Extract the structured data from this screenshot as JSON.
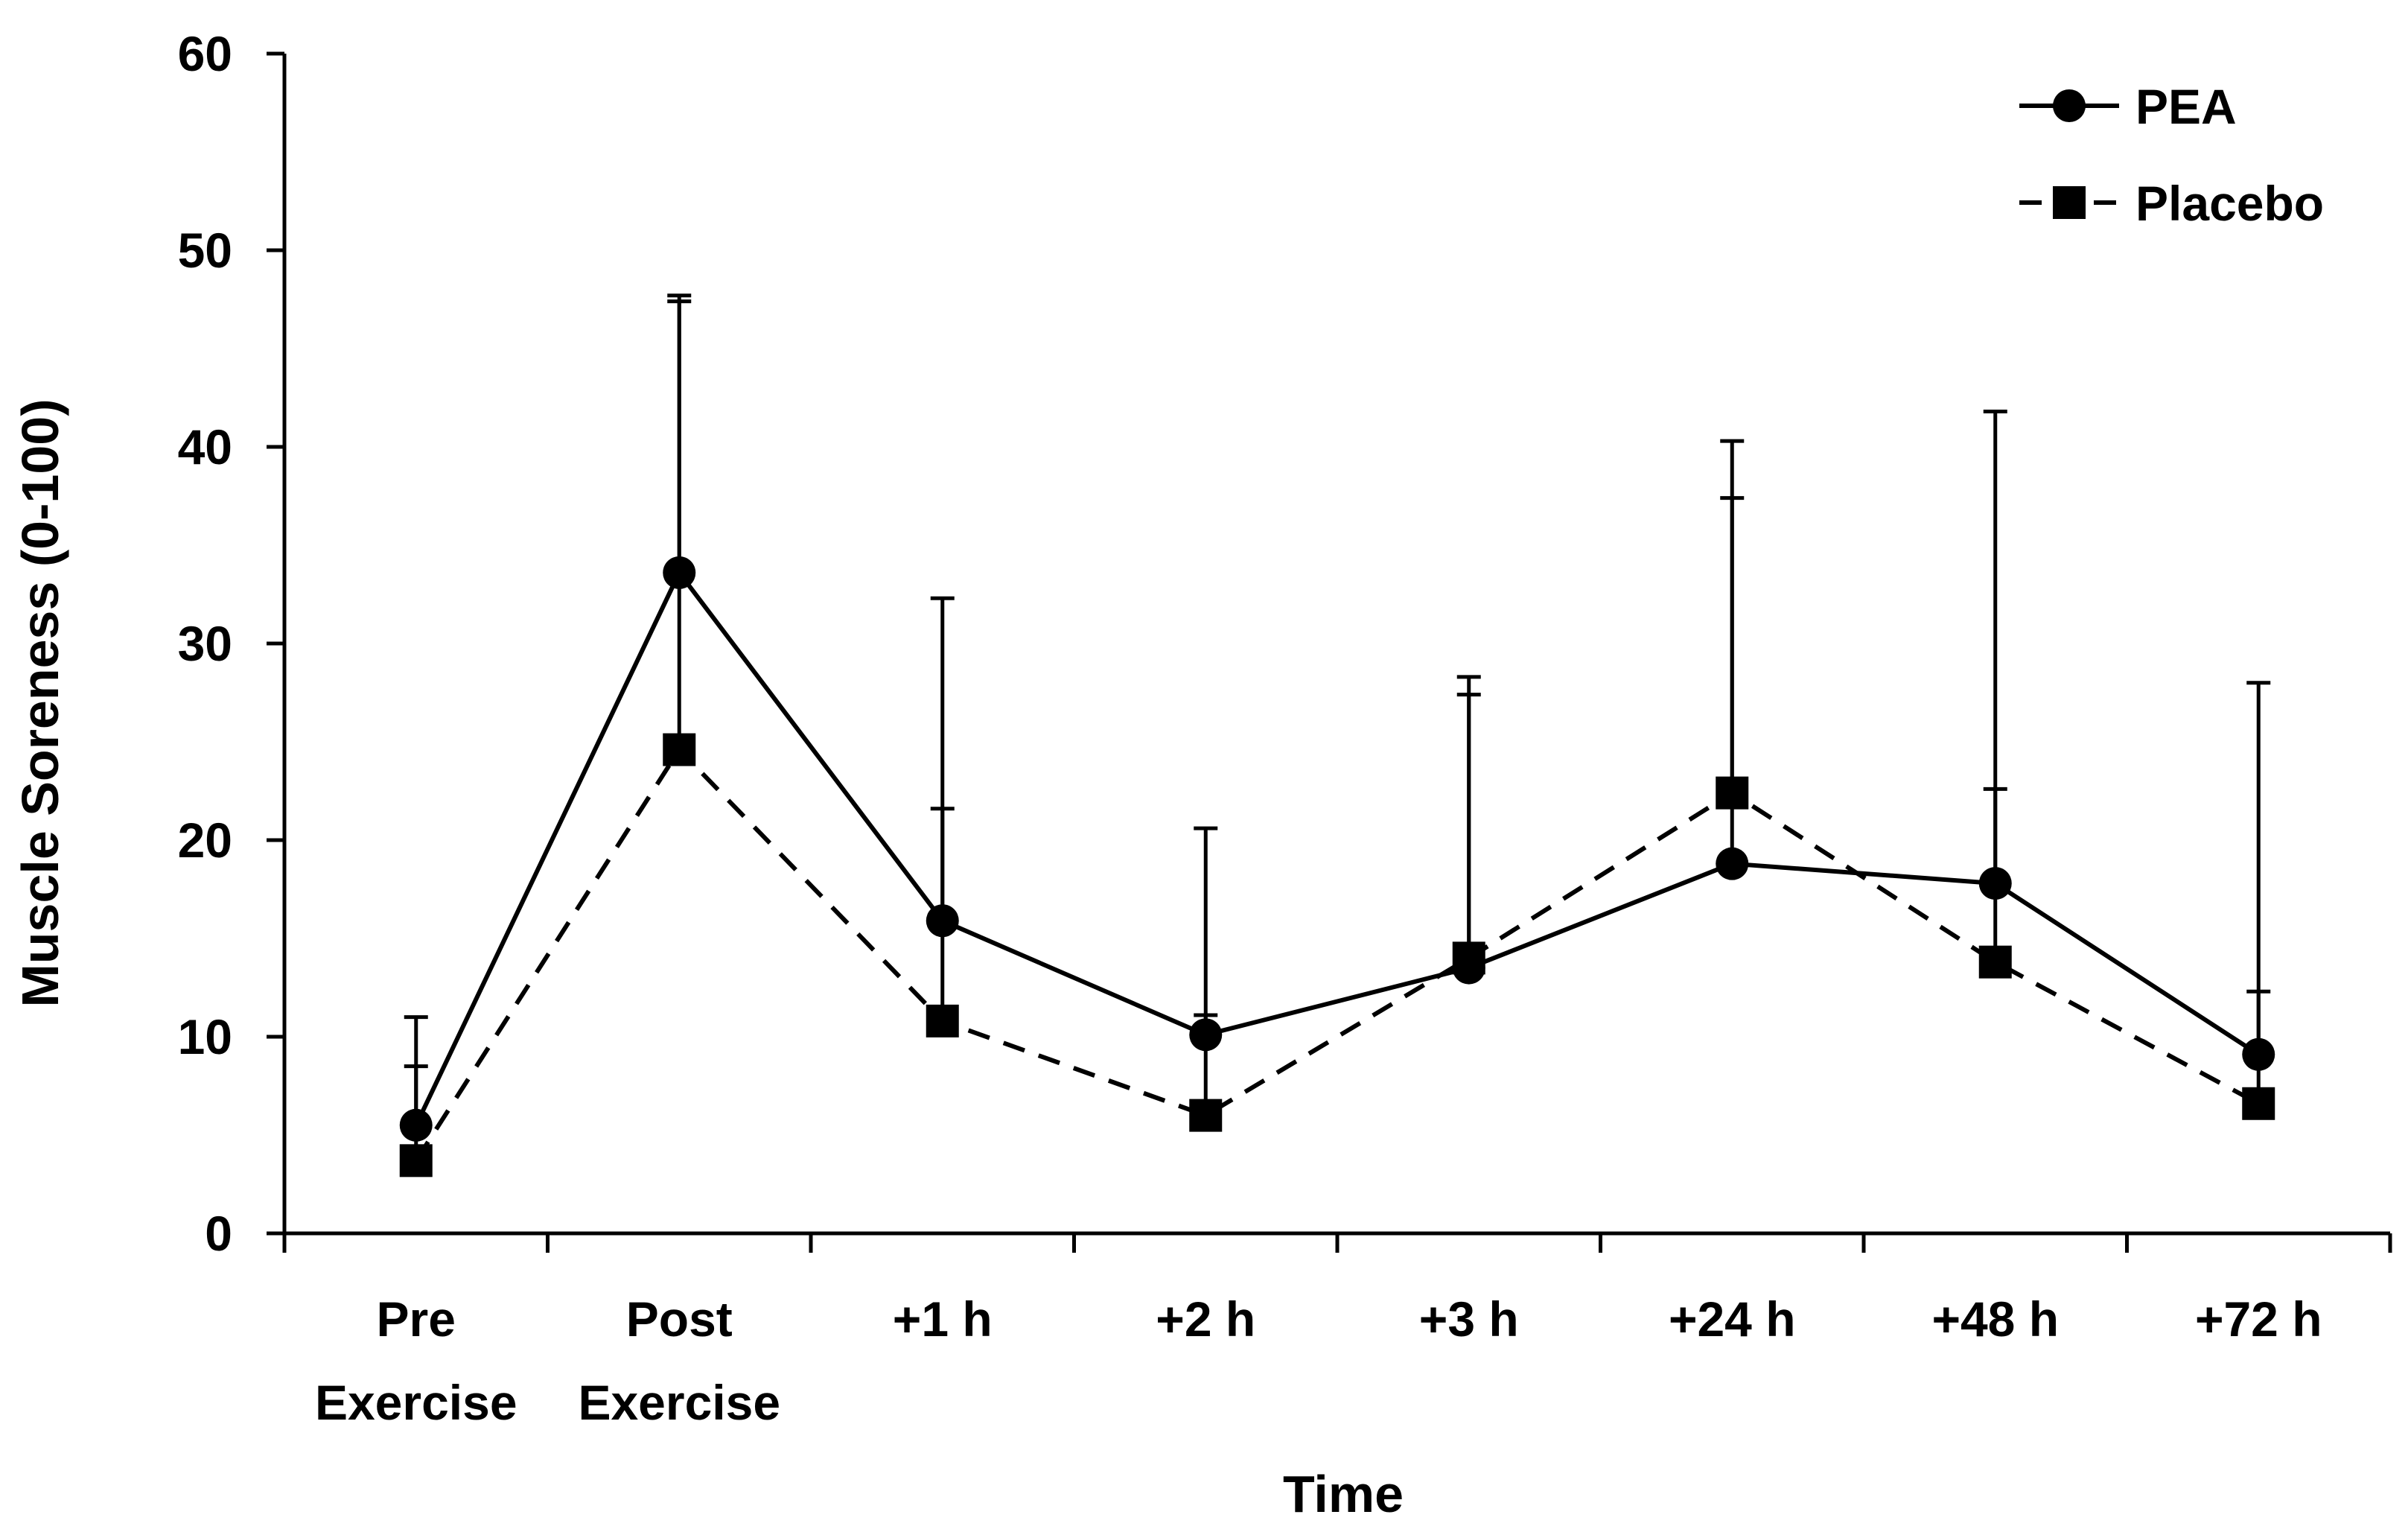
{
  "chart_data": {
    "type": "line",
    "title": "",
    "xlabel": "Time",
    "ylabel": "Muscle Soreness (0-100)",
    "ylim": [
      0,
      60
    ],
    "yticks": [
      0,
      10,
      20,
      30,
      40,
      50,
      60
    ],
    "categories": [
      [
        "Pre",
        "Exercise"
      ],
      [
        "Post",
        "Exercise"
      ],
      [
        "+1 h"
      ],
      [
        "+2 h"
      ],
      [
        "+3 h"
      ],
      [
        "+24 h"
      ],
      [
        "+48 h"
      ],
      [
        "+72 h"
      ]
    ],
    "legend_position": "top-right",
    "grid": false,
    "series": [
      {
        "name": "PEA",
        "marker": "circle",
        "line_style": "solid",
        "color": "#000000",
        "values": [
          5.5,
          33.6,
          15.9,
          10.1,
          13.5,
          18.8,
          17.8,
          9.1
        ],
        "error_upper": [
          11.0,
          47.7,
          32.3,
          20.6,
          28.3,
          37.4,
          41.8,
          28.0
        ]
      },
      {
        "name": "Placebo",
        "marker": "square",
        "line_style": "dashed",
        "color": "#000000",
        "values": [
          3.7,
          24.6,
          10.8,
          6.0,
          14.0,
          22.4,
          13.8,
          6.6
        ],
        "error_upper": [
          8.5,
          47.4,
          21.6,
          11.1,
          27.4,
          40.3,
          22.6,
          12.3
        ]
      }
    ]
  }
}
